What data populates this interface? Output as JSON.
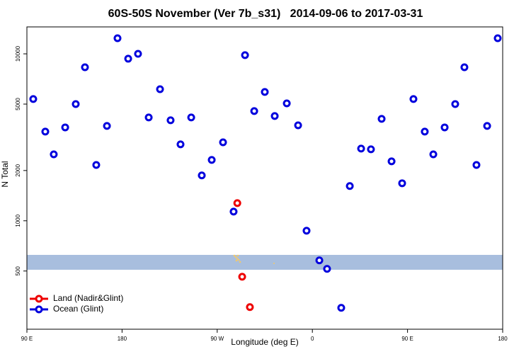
{
  "chart_data": {
    "type": "scatter",
    "title": "60S-50S November (Ver 7b_s31)   2014-09-06 to 2017-03-31",
    "x_label": "Longitude (deg E)",
    "y_label": "N Total",
    "log_y": true,
    "legend": "bottom-left",
    "xlim": [
      90,
      540
    ],
    "xticks": [
      {
        "value": 90,
        "label": "90 E"
      },
      {
        "value": 180,
        "label": "180"
      },
      {
        "value": 270,
        "label": "90 W"
      },
      {
        "value": 360,
        "label": "0"
      },
      {
        "value": 450,
        "label": "90 E"
      },
      {
        "value": 540,
        "label": "180"
      }
    ],
    "ylim": [
      224,
      14500
    ],
    "yticks": [
      500,
      1000,
      2000,
      5000,
      10000
    ],
    "series": [
      {
        "name": "Land (Nadir&Glint)",
        "color": "#ee0000",
        "x": [
          289,
          293.6,
          300.9
        ],
        "values": [
          1276,
          462,
          304
        ]
      },
      {
        "name": "Ocean (Glint)",
        "color": "#0000dd",
        "x": [
          96,
          107.4,
          115.4,
          126.2,
          136.2,
          144.9,
          155.6,
          165.7,
          175.7,
          185.8,
          195.1,
          205.2,
          215.9,
          225.9,
          235.3,
          245.4,
          255.4,
          264.8,
          275.5,
          285.5,
          296.3,
          305,
          315,
          324.4,
          335.8,
          346.5,
          354.5,
          366.6,
          373.9,
          387.3,
          395.4,
          406.1,
          415.4,
          425.5,
          434.9,
          444.9,
          455.6,
          466.3,
          474.4,
          485.1,
          495.1,
          503.8,
          515.2,
          525.3,
          535.3
        ],
        "values": [
          5360,
          3420,
          2500,
          3625,
          5000,
          8310,
          2160,
          3700,
          12400,
          9350,
          10000,
          4160,
          6140,
          4000,
          2870,
          4160,
          1870,
          2315,
          2950,
          1135,
          9820,
          4540,
          5910,
          4240,
          5050,
          3730,
          872,
          579,
          515,
          301,
          1614,
          2707,
          2680,
          4077,
          2270,
          1678,
          5360,
          3420,
          2500,
          3625,
          5000,
          8310,
          2160,
          3700,
          12400
        ]
      }
    ]
  }
}
